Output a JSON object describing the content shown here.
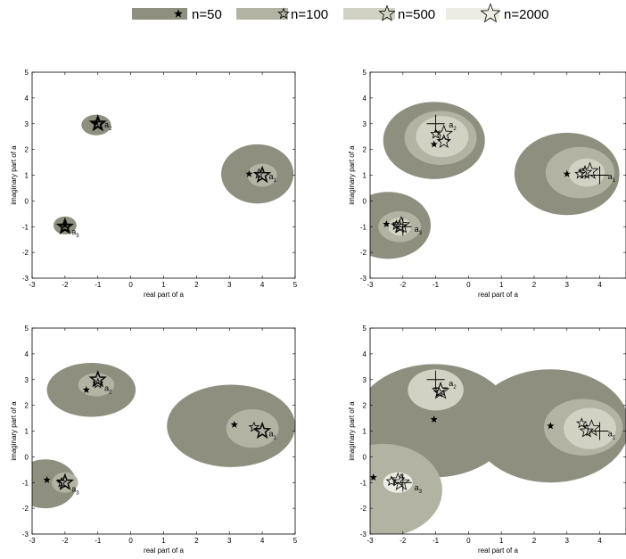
{
  "legend": {
    "entries": [
      {
        "label": "n=50",
        "color": "#8f8f80",
        "marker": "star-small"
      },
      {
        "label": "n=100",
        "color": "#b3b3a3",
        "marker": "star-medium"
      },
      {
        "label": "n=500",
        "color": "#d2d2c4",
        "marker": "star-large"
      },
      {
        "label": "n=2000",
        "color": "#ecece3",
        "marker": "star-xlarge"
      }
    ]
  },
  "chart_data": [
    {
      "type": "scatter",
      "xlabel": "real part of a",
      "ylabel": "imaginary part of a",
      "xlim": [
        -3,
        5
      ],
      "ylim": [
        -3,
        5
      ],
      "xticks": [
        -3,
        -2,
        -1,
        0,
        1,
        2,
        3,
        4,
        5
      ],
      "yticks": [
        -3,
        -2,
        -1,
        0,
        1,
        2,
        3,
        4,
        5
      ],
      "true_points": [],
      "labels": [
        {
          "base": "a",
          "sub": "1",
          "x": 4.2,
          "y": 0.85
        },
        {
          "base": "a",
          "sub": "2",
          "x": -0.8,
          "y": 2.85
        },
        {
          "base": "a",
          "sub": "3",
          "x": -1.8,
          "y": -1.3
        }
      ],
      "regions": [
        {
          "n": 50,
          "cx": 3.85,
          "cy": 1.05,
          "rx": 1.1,
          "ry": 1.15
        },
        {
          "n": 100,
          "cx": 4.0,
          "cy": 1.0,
          "rx": 0.45,
          "ry": 0.45
        },
        {
          "n": 50,
          "cx": -1.05,
          "cy": 2.95,
          "rx": 0.45,
          "ry": 0.4
        },
        {
          "n": 50,
          "cx": -2.0,
          "cy": -0.95,
          "rx": 0.35,
          "ry": 0.35
        }
      ],
      "estimates": [
        {
          "n": 50,
          "x": 3.6,
          "y": 1.05
        },
        {
          "n": 100,
          "x": 3.9,
          "y": 1.05
        },
        {
          "n": 500,
          "x": 4.0,
          "y": 1.0
        },
        {
          "n": 2000,
          "x": 4.0,
          "y": 1.0
        },
        {
          "n": 50,
          "x": -1.05,
          "y": 3.05
        },
        {
          "n": 100,
          "x": -1.0,
          "y": 3.0
        },
        {
          "n": 500,
          "x": -1.0,
          "y": 3.0
        },
        {
          "n": 2000,
          "x": -1.0,
          "y": 3.0
        },
        {
          "n": 50,
          "x": -2.0,
          "y": -0.95
        },
        {
          "n": 100,
          "x": -2.0,
          "y": -1.0
        },
        {
          "n": 500,
          "x": -2.0,
          "y": -1.0
        },
        {
          "n": 2000,
          "x": -2.0,
          "y": -1.0
        }
      ]
    },
    {
      "type": "scatter",
      "xlabel": "real part of a",
      "ylabel": "imaginary part of a",
      "xlim": [
        -3,
        4.8
      ],
      "ylim": [
        -3,
        5
      ],
      "xticks": [
        -3,
        -2,
        -1,
        0,
        1,
        2,
        3,
        4
      ],
      "yticks": [
        -3,
        -2,
        -1,
        0,
        1,
        2,
        3,
        4,
        5
      ],
      "true_points": [
        {
          "x": 4,
          "y": 1
        },
        {
          "x": -1,
          "y": 3
        },
        {
          "x": -2,
          "y": -1
        }
      ],
      "labels": [
        {
          "base": "a",
          "sub": "1",
          "x": 4.25,
          "y": 0.85
        },
        {
          "base": "a",
          "sub": "2",
          "x": -0.6,
          "y": 2.85
        },
        {
          "base": "a",
          "sub": "3",
          "x": -1.65,
          "y": -1.2
        }
      ],
      "regions": [
        {
          "n": 50,
          "cx": 3.0,
          "cy": 1.05,
          "rx": 1.6,
          "ry": 1.6
        },
        {
          "n": 100,
          "cx": 3.4,
          "cy": 1.1,
          "rx": 1.05,
          "ry": 1.0
        },
        {
          "n": 500,
          "cx": 3.6,
          "cy": 1.1,
          "rx": 0.55,
          "ry": 0.55
        },
        {
          "n": 50,
          "cx": -1.05,
          "cy": 2.35,
          "rx": 1.55,
          "ry": 1.5
        },
        {
          "n": 100,
          "cx": -0.85,
          "cy": 2.45,
          "rx": 1.1,
          "ry": 1.05
        },
        {
          "n": 500,
          "cx": -0.8,
          "cy": 2.5,
          "rx": 0.8,
          "ry": 0.8
        },
        {
          "n": 50,
          "cx": -2.45,
          "cy": -0.95,
          "rx": 1.3,
          "ry": 1.3
        },
        {
          "n": 100,
          "cx": -2.1,
          "cy": -1.0,
          "rx": 0.65,
          "ry": 0.6
        },
        {
          "n": 500,
          "cx": -2.1,
          "cy": -1.0,
          "rx": 0.35,
          "ry": 0.35
        }
      ],
      "estimates": [
        {
          "n": 50,
          "x": 3.0,
          "y": 1.05
        },
        {
          "n": 100,
          "x": 3.4,
          "y": 1.05
        },
        {
          "n": 500,
          "x": 3.55,
          "y": 1.1
        },
        {
          "n": 2000,
          "x": 3.7,
          "y": 1.15
        },
        {
          "n": 50,
          "x": -1.05,
          "y": 2.2
        },
        {
          "n": 100,
          "x": -1.0,
          "y": 2.6
        },
        {
          "n": 500,
          "x": -0.75,
          "y": 2.3
        },
        {
          "n": 2000,
          "x": -0.75,
          "y": 2.6
        },
        {
          "n": 50,
          "x": -2.5,
          "y": -0.9
        },
        {
          "n": 100,
          "x": -2.2,
          "y": -0.95
        },
        {
          "n": 500,
          "x": -2.1,
          "y": -1.0
        },
        {
          "n": 2000,
          "x": -2.05,
          "y": -0.95
        }
      ]
    },
    {
      "type": "scatter",
      "xlabel": "real part of a",
      "ylabel": "imaginary part of a",
      "xlim": [
        -3,
        5
      ],
      "ylim": [
        -3,
        5
      ],
      "xticks": [
        -3,
        -2,
        -1,
        0,
        1,
        2,
        3,
        4,
        5
      ],
      "yticks": [
        -3,
        -2,
        -1,
        0,
        1,
        2,
        3,
        4,
        5
      ],
      "true_points": [],
      "labels": [
        {
          "base": "a",
          "sub": "1",
          "x": 4.2,
          "y": 0.8
        },
        {
          "base": "a",
          "sub": "2",
          "x": -0.8,
          "y": 2.55
        },
        {
          "base": "a",
          "sub": "3",
          "x": -1.8,
          "y": -1.35
        }
      ],
      "regions": [
        {
          "n": 50,
          "cx": 3.05,
          "cy": 1.2,
          "rx": 1.95,
          "ry": 1.6
        },
        {
          "n": 100,
          "cx": 3.7,
          "cy": 1.1,
          "rx": 0.8,
          "ry": 0.75
        },
        {
          "n": 50,
          "cx": -1.2,
          "cy": 2.6,
          "rx": 1.35,
          "ry": 1.05
        },
        {
          "n": 100,
          "cx": -1.05,
          "cy": 2.8,
          "rx": 0.55,
          "ry": 0.45
        },
        {
          "n": 50,
          "cx": -2.6,
          "cy": -1.05,
          "rx": 0.95,
          "ry": 0.95
        },
        {
          "n": 100,
          "cx": -2.0,
          "cy": -1.0,
          "rx": 0.4,
          "ry": 0.4
        }
      ],
      "estimates": [
        {
          "n": 50,
          "x": 3.15,
          "y": 1.25
        },
        {
          "n": 100,
          "x": 3.75,
          "y": 1.15
        },
        {
          "n": 500,
          "x": 4.0,
          "y": 1.0
        },
        {
          "n": 2000,
          "x": 4.0,
          "y": 1.0
        },
        {
          "n": 50,
          "x": -1.35,
          "y": 2.6
        },
        {
          "n": 100,
          "x": -1.0,
          "y": 2.85
        },
        {
          "n": 500,
          "x": -1.0,
          "y": 3.0
        },
        {
          "n": 2000,
          "x": -1.0,
          "y": 3.0
        },
        {
          "n": 50,
          "x": -2.55,
          "y": -0.9
        },
        {
          "n": 100,
          "x": -2.1,
          "y": -1.0
        },
        {
          "n": 500,
          "x": -2.0,
          "y": -1.0
        },
        {
          "n": 2000,
          "x": -2.0,
          "y": -1.0
        }
      ]
    },
    {
      "type": "scatter",
      "xlabel": "real part of a",
      "ylabel": "imaginary part of a",
      "xlim": [
        -3,
        4.8
      ],
      "ylim": [
        -3,
        5
      ],
      "xticks": [
        -3,
        -2,
        -1,
        0,
        1,
        2,
        3,
        4
      ],
      "yticks": [
        -3,
        -2,
        -1,
        0,
        1,
        2,
        3,
        4,
        5
      ],
      "true_points": [
        {
          "x": 4,
          "y": 1
        },
        {
          "x": -1,
          "y": 3
        },
        {
          "x": -2,
          "y": -1
        }
      ],
      "labels": [
        {
          "base": "a",
          "sub": "1",
          "x": 4.25,
          "y": 0.8
        },
        {
          "base": "a",
          "sub": "2",
          "x": -0.6,
          "y": 2.75
        },
        {
          "base": "a",
          "sub": "3",
          "x": -1.65,
          "y": -1.3
        }
      ],
      "regions": [
        {
          "n": 50,
          "cx": -1.05,
          "cy": 1.4,
          "rx": 2.4,
          "ry": 2.2
        },
        {
          "n": 50,
          "cx": 2.5,
          "cy": 1.2,
          "rx": 2.4,
          "ry": 2.2
        },
        {
          "n": 100,
          "cx": 3.5,
          "cy": 1.15,
          "rx": 1.2,
          "ry": 1.1
        },
        {
          "n": 500,
          "cx": 3.7,
          "cy": 1.1,
          "rx": 0.8,
          "ry": 0.8
        },
        {
          "n": 100,
          "cx": -2.6,
          "cy": -1.3,
          "rx": 1.8,
          "ry": 1.8
        },
        {
          "n": 500,
          "cx": -1.0,
          "cy": 2.6,
          "rx": 0.85,
          "ry": 0.8
        },
        {
          "n": 2000,
          "cx": -2.15,
          "cy": -1.0,
          "rx": 0.45,
          "ry": 0.4
        }
      ],
      "estimates": [
        {
          "n": 50,
          "x": 2.5,
          "y": 1.2
        },
        {
          "n": 100,
          "x": 3.45,
          "y": 1.3
        },
        {
          "n": 500,
          "x": 3.6,
          "y": 1.0
        },
        {
          "n": 2000,
          "x": 3.75,
          "y": 1.1
        },
        {
          "n": 50,
          "x": -1.05,
          "y": 1.45
        },
        {
          "n": 100,
          "x": -0.9,
          "y": 2.5
        },
        {
          "n": 500,
          "x": -0.85,
          "y": 2.6
        },
        {
          "n": 2000,
          "x": -0.85,
          "y": 2.55
        },
        {
          "n": 50,
          "x": -2.9,
          "y": -0.8
        },
        {
          "n": 100,
          "x": -2.35,
          "y": -0.95
        },
        {
          "n": 500,
          "x": -2.15,
          "y": -0.9
        },
        {
          "n": 2000,
          "x": -2.05,
          "y": -1.0
        }
      ]
    }
  ]
}
